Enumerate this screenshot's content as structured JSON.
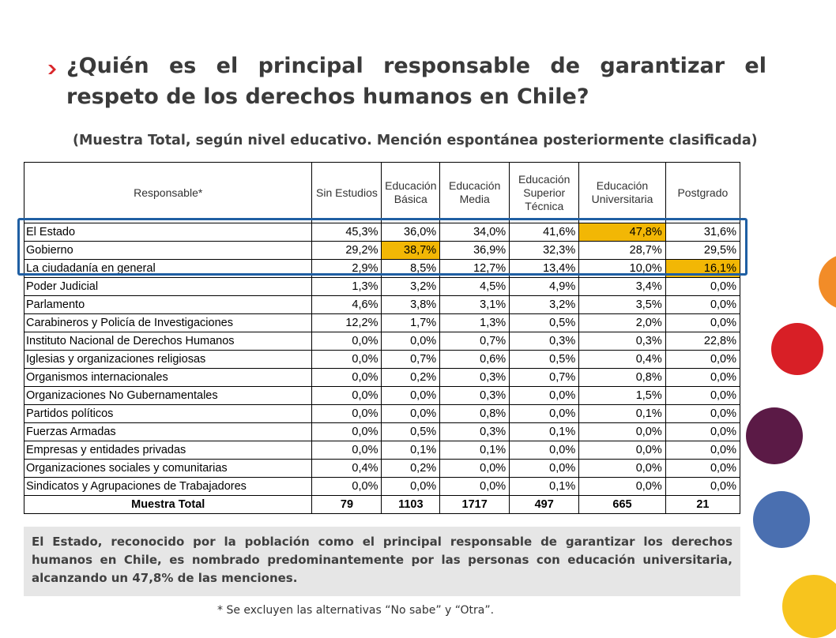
{
  "title": "¿Quién es el principal responsable de garantizar el respeto de los derechos humanos en Chile?",
  "subtitle": "(Muestra Total, según nivel educativo. Mención espontánea posteriormente clasificada)",
  "table": {
    "headers": [
      "Responsable*",
      "Sin Estudios",
      "Educación Básica",
      "Educación Media",
      "Educación Superior Técnica",
      "Educación Universitaria",
      "Postgrado"
    ],
    "rows": [
      {
        "name": "El Estado",
        "values": [
          "45,3%",
          "36,0%",
          "34,0%",
          "41,6%",
          "47,8%",
          "31,6%"
        ],
        "highlight": 4
      },
      {
        "name": "Gobierno",
        "values": [
          "29,2%",
          "38,7%",
          "36,9%",
          "32,3%",
          "28,7%",
          "29,5%"
        ],
        "highlight": 1
      },
      {
        "name": "La ciudadanía en general",
        "values": [
          "2,9%",
          "8,5%",
          "12,7%",
          "13,4%",
          "10,0%",
          "16,1%"
        ],
        "highlight": 5
      },
      {
        "name": "Poder Judicial",
        "values": [
          "1,3%",
          "3,2%",
          "4,5%",
          "4,9%",
          "3,4%",
          "0,0%"
        ]
      },
      {
        "name": "Parlamento",
        "values": [
          "4,6%",
          "3,8%",
          "3,1%",
          "3,2%",
          "3,5%",
          "0,0%"
        ]
      },
      {
        "name": "Carabineros y Policía de Investigaciones",
        "values": [
          "12,2%",
          "1,7%",
          "1,3%",
          "0,5%",
          "2,0%",
          "0,0%"
        ]
      },
      {
        "name": "Instituto Nacional de Derechos Humanos",
        "values": [
          "0,0%",
          "0,0%",
          "0,7%",
          "0,3%",
          "0,3%",
          "22,8%"
        ]
      },
      {
        "name": "Iglesias y organizaciones religiosas",
        "values": [
          "0,0%",
          "0,7%",
          "0,6%",
          "0,5%",
          "0,4%",
          "0,0%"
        ]
      },
      {
        "name": "Organismos internacionales",
        "values": [
          "0,0%",
          "0,2%",
          "0,3%",
          "0,7%",
          "0,8%",
          "0,0%"
        ]
      },
      {
        "name": "Organizaciones No Gubernamentales",
        "values": [
          "0,0%",
          "0,0%",
          "0,3%",
          "0,0%",
          "1,5%",
          "0,0%"
        ]
      },
      {
        "name": "Partidos políticos",
        "values": [
          "0,0%",
          "0,0%",
          "0,8%",
          "0,0%",
          "0,1%",
          "0,0%"
        ]
      },
      {
        "name": "Fuerzas Armadas",
        "values": [
          "0,0%",
          "0,5%",
          "0,3%",
          "0,1%",
          "0,0%",
          "0,0%"
        ]
      },
      {
        "name": "Empresas y entidades privadas",
        "values": [
          "0,0%",
          "0,1%",
          "0,1%",
          "0,0%",
          "0,0%",
          "0,0%"
        ]
      },
      {
        "name": "Organizaciones sociales y comunitarias",
        "values": [
          "0,4%",
          "0,2%",
          "0,0%",
          "0,0%",
          "0,0%",
          "0,0%"
        ]
      },
      {
        "name": "Sindicatos y Agrupaciones de Trabajadores",
        "values": [
          "0,0%",
          "0,0%",
          "0,0%",
          "0,1%",
          "0,0%",
          "0,0%"
        ]
      }
    ],
    "total": {
      "name": "Muestra Total",
      "values": [
        "79",
        "1103",
        "1717",
        "497",
        "665",
        "21"
      ]
    }
  },
  "summary": "El Estado, reconocido por la población como el principal responsable de garantizar los derechos humanos en Chile, es nombrado predominantemente por las personas con educación universitaria, alcanzando un 47,8% de las menciones.",
  "footnote": "* Se excluyen las alternativas “No sabe” y “Otra”.",
  "colors": {
    "highlight": "#f2b705",
    "frame": "#1f5fa3",
    "bullet": "#d9262a",
    "circles": [
      "#f28c28",
      "#d81f26",
      "#5b1a46",
      "#4a6fb0",
      "#f7c41e"
    ]
  },
  "icons": {
    "bullet": "chevron-right-icon"
  }
}
